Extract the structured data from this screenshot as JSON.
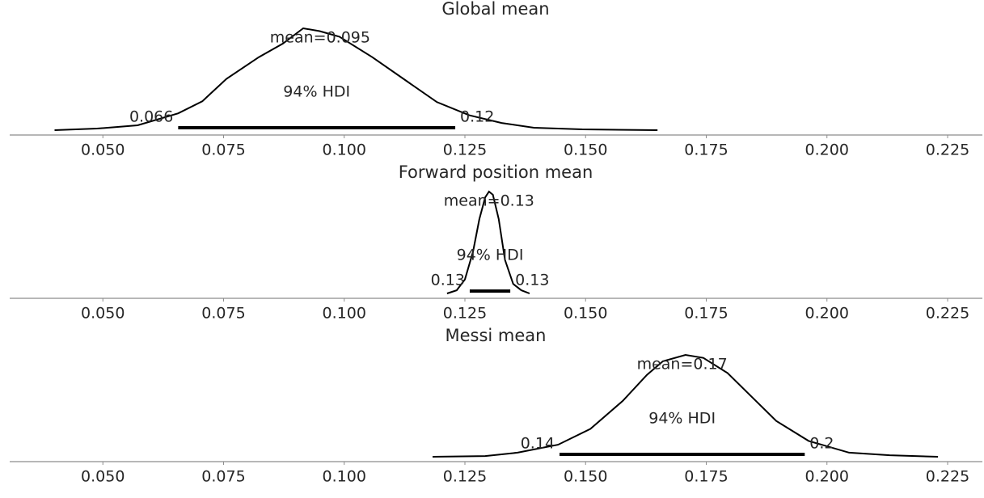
{
  "chart_data": [
    {
      "type": "density",
      "title": "Global mean",
      "x": [
        0.04,
        0.0488,
        0.0572,
        0.0656,
        0.0706,
        0.0756,
        0.0823,
        0.0873,
        0.0915,
        0.0949,
        0.099,
        0.1058,
        0.1125,
        0.1192,
        0.1259,
        0.1326,
        0.1393,
        0.1493,
        0.1649
      ],
      "values": [
        0,
        0.4,
        1.2,
        4.2,
        7.2,
        12.8,
        18.2,
        21.6,
        25.4,
        24.7,
        23.3,
        18.2,
        12.6,
        7.0,
        3.7,
        1.8,
        0.6,
        0.2,
        0
      ],
      "color": "#000000",
      "mean": 0.095,
      "mean_label": "mean=0.095",
      "hdi": [
        0.0656,
        0.123
      ],
      "hdi_labels": [
        "0.066",
        "0.12"
      ],
      "hdi_label": "94% HDI",
      "xlim": [
        0.0307,
        0.2322
      ],
      "ylim": [
        0,
        25.4
      ],
      "xticks": [
        {
          "value": 0.05,
          "label": "0.050"
        },
        {
          "value": 0.075,
          "label": "0.075"
        },
        {
          "value": 0.1,
          "label": "0.100"
        },
        {
          "value": 0.125,
          "label": "0.125"
        },
        {
          "value": 0.15,
          "label": "0.150"
        },
        {
          "value": 0.175,
          "label": "0.175"
        },
        {
          "value": 0.2,
          "label": "0.200"
        },
        {
          "value": 0.225,
          "label": "0.225"
        }
      ]
    },
    {
      "type": "density",
      "title": "Forward position mean",
      "x": [
        0.1213,
        0.1233,
        0.125,
        0.1267,
        0.128,
        0.1292,
        0.13,
        0.1308,
        0.132,
        0.1333,
        0.135,
        0.1367,
        0.1384
      ],
      "values": [
        0,
        5,
        22,
        66,
        117,
        151,
        160,
        155,
        117,
        53,
        15,
        5,
        0
      ],
      "color": "#000000",
      "mean": 0.13,
      "mean_label": "mean=0.13",
      "hdi": [
        0.126,
        0.1344
      ],
      "hdi_labels": [
        "0.13",
        "0.13"
      ],
      "hdi_label": "94% HDI",
      "xlim": [
        0.0307,
        0.2322
      ],
      "ylim": [
        0,
        160
      ],
      "xticks": [
        {
          "value": 0.05,
          "label": "0.050"
        },
        {
          "value": 0.075,
          "label": "0.075"
        },
        {
          "value": 0.1,
          "label": "0.100"
        },
        {
          "value": 0.125,
          "label": "0.125"
        },
        {
          "value": 0.15,
          "label": "0.150"
        },
        {
          "value": 0.175,
          "label": "0.175"
        },
        {
          "value": 0.2,
          "label": "0.200"
        },
        {
          "value": 0.225,
          "label": "0.225"
        }
      ]
    },
    {
      "type": "density",
      "title": "Messi mean",
      "x": [
        0.1183,
        0.1292,
        0.1359,
        0.1443,
        0.151,
        0.1577,
        0.1627,
        0.166,
        0.1707,
        0.1744,
        0.1794,
        0.1845,
        0.1895,
        0.1962,
        0.2046,
        0.213,
        0.223
      ],
      "values": [
        0,
        0.2,
        1.1,
        3.2,
        7.4,
        14.8,
        21.7,
        25.3,
        27,
        26.2,
        22.2,
        15.8,
        9.5,
        4.2,
        1.1,
        0.4,
        0
      ],
      "color": "#000000",
      "mean": 0.17,
      "mean_label": "mean=0.17",
      "hdi": [
        0.1446,
        0.1954
      ],
      "hdi_labels": [
        "0.14",
        "0.2"
      ],
      "hdi_label": "94% HDI",
      "xlim": [
        0.0307,
        0.2322
      ],
      "ylim": [
        0,
        27
      ],
      "xticks": [
        {
          "value": 0.05,
          "label": "0.050"
        },
        {
          "value": 0.075,
          "label": "0.075"
        },
        {
          "value": 0.1,
          "label": "0.100"
        },
        {
          "value": 0.125,
          "label": "0.125"
        },
        {
          "value": 0.15,
          "label": "0.150"
        },
        {
          "value": 0.175,
          "label": "0.175"
        },
        {
          "value": 0.2,
          "label": "0.200"
        },
        {
          "value": 0.225,
          "label": "0.225"
        }
      ]
    }
  ]
}
